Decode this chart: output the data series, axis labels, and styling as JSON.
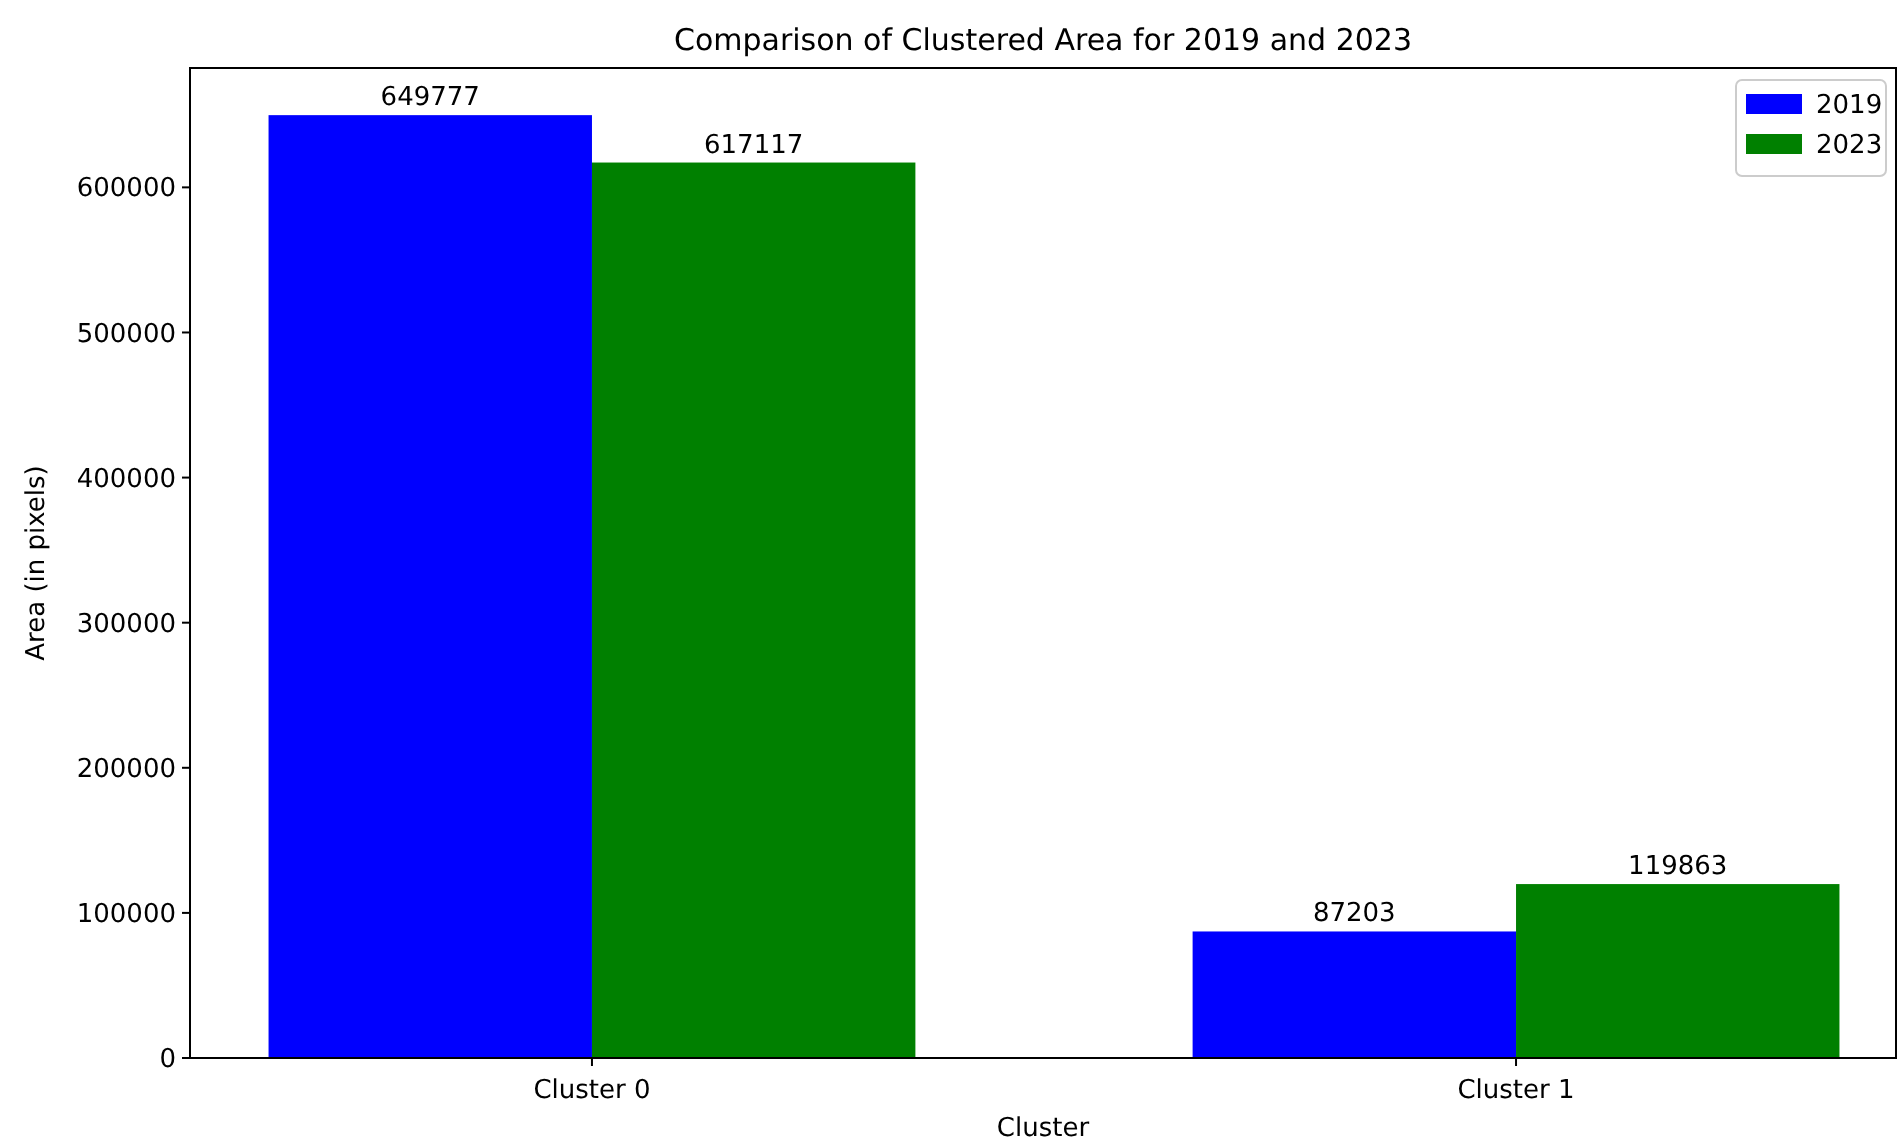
{
  "chart_data": {
    "type": "bar",
    "title": "Comparison of Clustered Area for 2019 and 2023",
    "xlabel": "Cluster",
    "ylabel": "Area (in pixels)",
    "categories": [
      "Cluster 0",
      "Cluster 1"
    ],
    "series": [
      {
        "name": "2019",
        "color": "#0000ff",
        "values": [
          649777,
          87203
        ]
      },
      {
        "name": "2023",
        "color": "#008000",
        "values": [
          617117,
          119863
        ]
      }
    ],
    "ylim": [
      0,
      682266
    ],
    "yticks": [
      0,
      100000,
      200000,
      300000,
      400000,
      500000,
      600000
    ],
    "data_labels": true,
    "legend": "top right",
    "grid": false
  }
}
